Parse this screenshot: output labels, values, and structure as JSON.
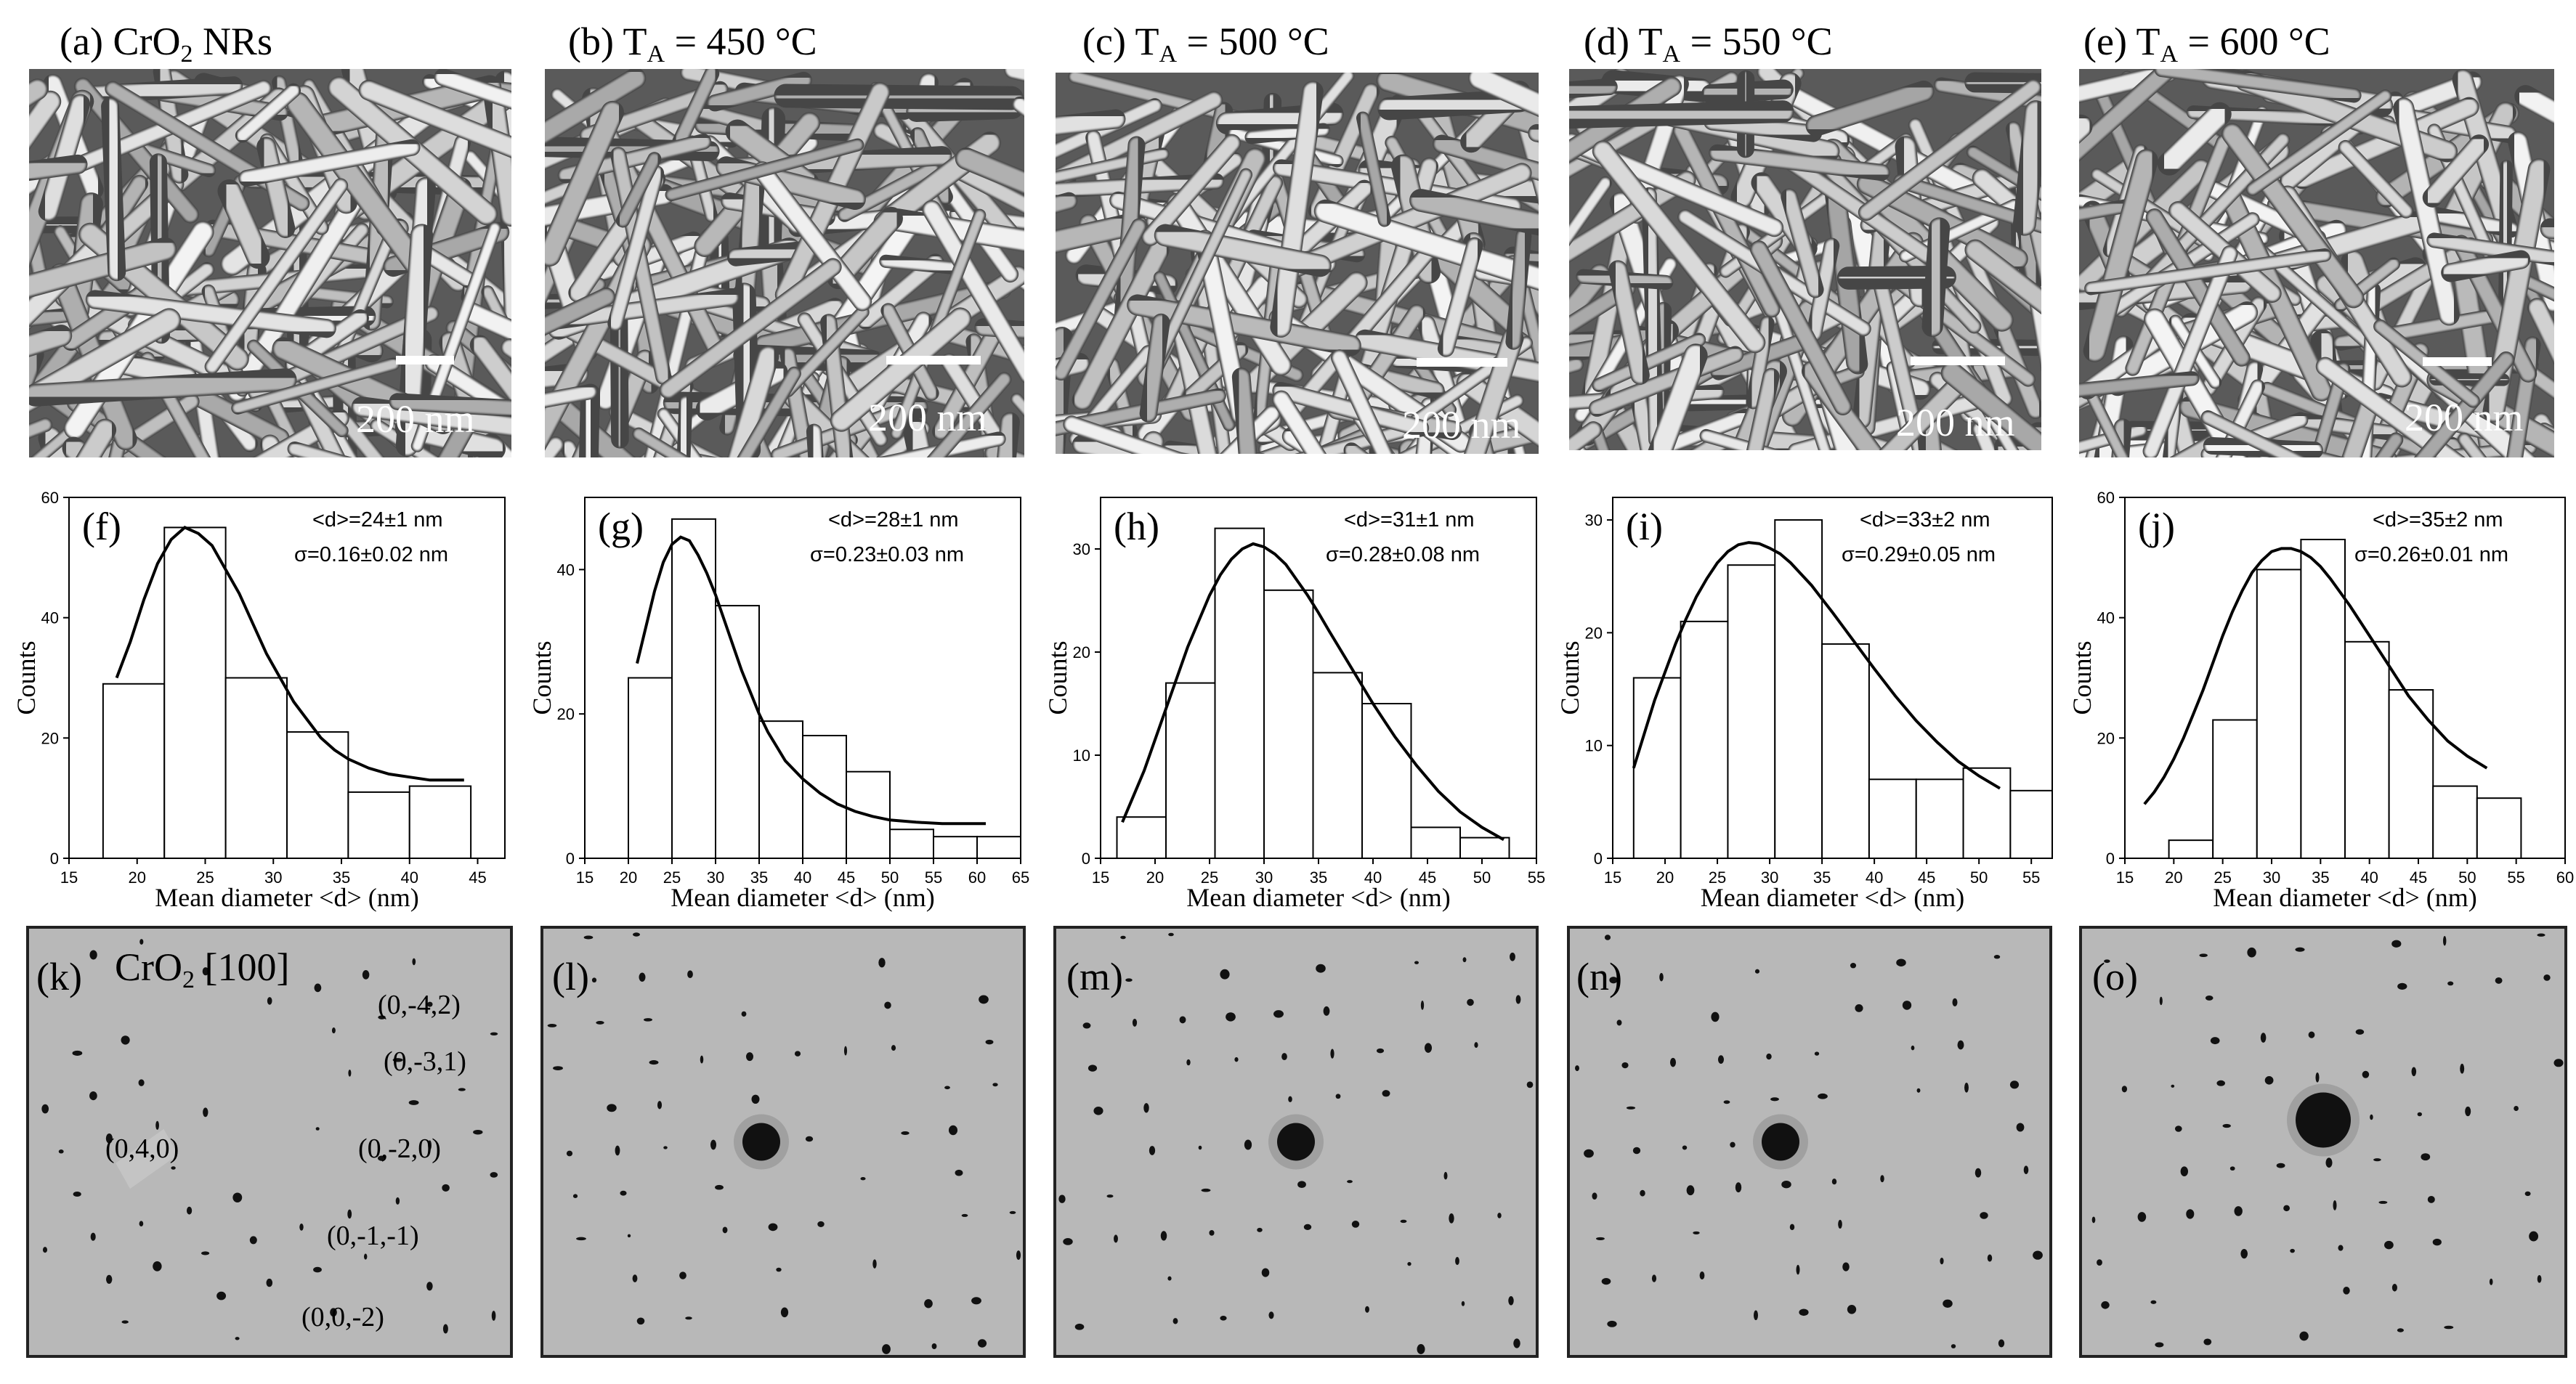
{
  "sem_panels": [
    {
      "letter": "(a)",
      "title_pre": "CrO",
      "title_sub": "2",
      "title_post": " NRs",
      "scalebar": "200 nm"
    },
    {
      "letter": "(b)",
      "title_pre": "T",
      "title_sub": "A",
      "title_post": " = 450 °C",
      "scalebar": "200 nm"
    },
    {
      "letter": "(c)",
      "title_pre": "T",
      "title_sub": "A",
      "title_post": " = 500 °C",
      "scalebar": "200 nm"
    },
    {
      "letter": "(d)",
      "title_pre": "T",
      "title_sub": "A",
      "title_post": " = 550 °C",
      "scalebar": "200 nm"
    },
    {
      "letter": "(e)",
      "title_pre": "T",
      "title_sub": "A",
      "title_post": " = 600 °C",
      "scalebar": "200 nm"
    }
  ],
  "chart_data": [
    {
      "type": "bar",
      "panel": "(f)",
      "xlabel": "Mean diameter <d> (nm)",
      "ylabel": "Counts",
      "stat_mean": "<d>=24±1 nm",
      "stat_sigma": "σ=0.16±0.02 nm",
      "xlim": [
        15,
        47
      ],
      "ylim": [
        0,
        60
      ],
      "xticks": [
        15,
        20,
        25,
        30,
        35,
        40,
        45
      ],
      "yticks": [
        0,
        20,
        40,
        60
      ],
      "bins": [
        [
          17.5,
          22
        ],
        [
          22,
          26.5
        ],
        [
          26.5,
          31
        ],
        [
          31,
          35.5
        ],
        [
          35.5,
          40
        ],
        [
          40,
          44.5
        ]
      ],
      "values": [
        29,
        55,
        30,
        21,
        11,
        12
      ],
      "fit": {
        "x": [
          18.5,
          19.5,
          20.5,
          21.5,
          22.5,
          23.5,
          24.5,
          25.5,
          26.5,
          27.5,
          28.5,
          29.5,
          30.5,
          31.5,
          32.5,
          33.5,
          34.5,
          35.5,
          37,
          38.5,
          40,
          41.5,
          43,
          44
        ],
        "y": [
          30,
          36,
          43,
          49,
          53,
          55,
          54,
          52,
          48,
          44,
          39,
          34,
          30,
          26,
          23,
          20,
          18,
          16.5,
          15,
          14,
          13.5,
          13,
          13,
          13
        ]
      }
    },
    {
      "type": "bar",
      "panel": "(g)",
      "xlabel": "Mean diameter <d> (nm)",
      "ylabel": "Counts",
      "stat_mean": "<d>=28±1 nm",
      "stat_sigma": "σ=0.23±0.03 nm",
      "xlim": [
        15,
        65
      ],
      "ylim": [
        0,
        50
      ],
      "xticks": [
        15,
        20,
        25,
        30,
        35,
        40,
        45,
        50,
        55,
        60,
        65
      ],
      "yticks": [
        0,
        20,
        40
      ],
      "bins": [
        [
          20,
          25
        ],
        [
          25,
          30
        ],
        [
          30,
          35
        ],
        [
          35,
          40
        ],
        [
          40,
          45
        ],
        [
          45,
          50
        ],
        [
          50,
          55
        ],
        [
          55,
          60
        ],
        [
          60,
          65
        ]
      ],
      "values": [
        25,
        47,
        35,
        19,
        17,
        12,
        4,
        3,
        3
      ],
      "fit": {
        "x": [
          21,
          22,
          23,
          24,
          25,
          26,
          27,
          28,
          29,
          30,
          31,
          32,
          33,
          34,
          35,
          36,
          37,
          38,
          40,
          42,
          44,
          46,
          48,
          50,
          53,
          56,
          61
        ],
        "y": [
          27,
          32,
          37,
          41,
          43.5,
          44.5,
          44,
          42,
          39.5,
          36.5,
          33,
          29.5,
          26,
          23,
          20,
          17.5,
          15.5,
          13.5,
          11,
          9,
          7.5,
          6.5,
          5.8,
          5.3,
          5,
          4.8,
          4.8
        ]
      }
    },
    {
      "type": "bar",
      "panel": "(h)",
      "xlabel": "Mean diameter <d> (nm)",
      "ylabel": "Counts",
      "stat_mean": "<d>=31±1 nm",
      "stat_sigma": "σ=0.28±0.08 nm",
      "xlim": [
        15,
        55
      ],
      "ylim": [
        0,
        35
      ],
      "xticks": [
        15,
        20,
        25,
        30,
        35,
        40,
        45,
        50,
        55
      ],
      "yticks": [
        0,
        10,
        20,
        30
      ],
      "bins": [
        [
          16.5,
          21
        ],
        [
          21,
          25.5
        ],
        [
          25.5,
          30
        ],
        [
          30,
          34.5
        ],
        [
          34.5,
          39
        ],
        [
          39,
          43.5
        ],
        [
          43.5,
          48
        ],
        [
          48,
          52.5
        ]
      ],
      "values": [
        4,
        17,
        32,
        26,
        18,
        15,
        3,
        2
      ],
      "fit": {
        "x": [
          17,
          18,
          19,
          20,
          21,
          22,
          23,
          24,
          25,
          26,
          27,
          28,
          29,
          30,
          31,
          32,
          33,
          34,
          35,
          36,
          38,
          40,
          42,
          44,
          46,
          48,
          50,
          52
        ],
        "y": [
          3.5,
          6,
          8.5,
          11.5,
          14.5,
          17.5,
          20.5,
          23,
          25.5,
          27.5,
          29,
          30,
          30.5,
          30.2,
          29.5,
          28.5,
          27,
          25.5,
          23.8,
          22,
          18.5,
          15,
          11.8,
          9,
          6.5,
          4.5,
          3,
          1.8
        ]
      }
    },
    {
      "type": "bar",
      "panel": "(i)",
      "xlabel": "Mean diameter <d> (nm)",
      "ylabel": "Counts",
      "stat_mean": "<d>=33±2 nm",
      "stat_sigma": "σ=0.29±0.05 nm",
      "xlim": [
        15,
        57
      ],
      "ylim": [
        0,
        32
      ],
      "xticks": [
        15,
        20,
        25,
        30,
        35,
        40,
        45,
        50,
        55
      ],
      "yticks": [
        0,
        10,
        20,
        30
      ],
      "bins": [
        [
          17,
          21.5
        ],
        [
          21.5,
          26
        ],
        [
          26,
          30.5
        ],
        [
          30.5,
          35
        ],
        [
          35,
          39.5
        ],
        [
          39.5,
          44
        ],
        [
          44,
          48.5
        ],
        [
          48.5,
          53
        ],
        [
          53,
          57
        ]
      ],
      "values": [
        16,
        21,
        26,
        30,
        19,
        7,
        7,
        8,
        6
      ],
      "fit": {
        "x": [
          17,
          18,
          19,
          20,
          21,
          22,
          23,
          24,
          25,
          26,
          27,
          28,
          29,
          30,
          31,
          32,
          33,
          34,
          35,
          36,
          38,
          40,
          42,
          44,
          46,
          48,
          50,
          52
        ],
        "y": [
          8,
          11,
          14,
          16.5,
          19,
          21.2,
          23.2,
          24.8,
          26.2,
          27.2,
          27.8,
          28,
          27.9,
          27.5,
          27,
          26.2,
          25.2,
          24.2,
          23,
          21.8,
          19.3,
          16.8,
          14.4,
          12.2,
          10.3,
          8.6,
          7.3,
          6.2
        ]
      }
    },
    {
      "type": "bar",
      "panel": "(j)",
      "xlabel": "Mean diameter <d> (nm)",
      "ylabel": "Counts",
      "stat_mean": "<d>=35±2 nm",
      "stat_sigma": "σ=0.26±0.01 nm",
      "xlim": [
        15,
        60
      ],
      "ylim": [
        0,
        60
      ],
      "xticks": [
        15,
        20,
        25,
        30,
        35,
        40,
        45,
        50,
        55,
        60
      ],
      "yticks": [
        0,
        20,
        40,
        60
      ],
      "bins": [
        [
          19.5,
          24
        ],
        [
          24,
          28.5
        ],
        [
          28.5,
          33
        ],
        [
          33,
          37.5
        ],
        [
          37.5,
          42
        ],
        [
          42,
          46.5
        ],
        [
          46.5,
          51
        ],
        [
          51,
          55.5
        ]
      ],
      "values": [
        3,
        23,
        48,
        53,
        36,
        28,
        12,
        10
      ],
      "fit": {
        "x": [
          17,
          18,
          19,
          20,
          21,
          22,
          23,
          24,
          25,
          26,
          27,
          28,
          29,
          30,
          31,
          32,
          33,
          34,
          35,
          36,
          38,
          40,
          42,
          44,
          46,
          48,
          50,
          52
        ],
        "y": [
          9,
          11,
          13.5,
          16.5,
          20,
          24,
          28,
          32.5,
          37,
          41,
          44.5,
          47.5,
          49.5,
          51,
          51.5,
          51.5,
          51,
          50,
          48.5,
          46.5,
          42,
          37,
          32,
          27,
          23,
          19.5,
          17,
          15
        ]
      }
    }
  ],
  "saed_panels": [
    {
      "letter": "(k)",
      "title_pre": "CrO",
      "title_sub": "2",
      "title_post": " [100]",
      "indices": [
        "(0,-4,2)",
        "(0,-3,1)",
        "(0,4,0)",
        "(0,-2,0)",
        "(0,-1,-1)",
        "(0,0,-2)"
      ]
    },
    {
      "letter": "(l)"
    },
    {
      "letter": "(m)"
    },
    {
      "letter": "(n)"
    },
    {
      "letter": "(o)"
    }
  ],
  "colors": {
    "sem_background": "#5f5f5f",
    "saed_background": "#b5b5b5",
    "bar_outline": "#000000",
    "fit_line": "#000000"
  }
}
